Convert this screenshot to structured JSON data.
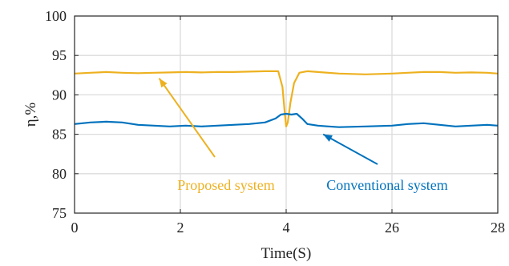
{
  "chart_data": {
    "type": "line",
    "title": "",
    "xlabel": "Time(S)",
    "ylabel": "η,%",
    "x_tick_labels": [
      "0",
      "2",
      "4",
      "26",
      "28"
    ],
    "y_ticks": [
      75,
      80,
      85,
      90,
      95,
      100
    ],
    "y_tick_labels": [
      "75",
      "80",
      "85",
      "90",
      "95",
      "100"
    ],
    "ylim": [
      75,
      100
    ],
    "grid": true,
    "legend": "none",
    "series": [
      {
        "color": "#EDB120",
        "x": [
          0,
          0.3,
          0.6,
          0.9,
          1.2,
          1.5,
          1.8,
          2.1,
          2.4,
          2.7,
          3.0,
          3.3,
          3.6,
          3.85,
          3.93,
          3.97,
          4.0,
          4.03,
          4.08,
          4.15,
          4.25,
          4.4,
          4.7,
          5.0,
          5.5,
          26.0,
          26.3,
          26.6,
          26.9,
          27.2,
          27.5,
          27.8,
          28.0
        ],
        "y": [
          92.7,
          92.8,
          92.9,
          92.8,
          92.75,
          92.8,
          92.85,
          92.9,
          92.85,
          92.9,
          92.9,
          92.95,
          93.0,
          93.0,
          91.0,
          88.0,
          86.0,
          86.5,
          89.0,
          91.5,
          92.8,
          93.0,
          92.85,
          92.7,
          92.6,
          92.7,
          92.8,
          92.9,
          92.9,
          92.8,
          92.85,
          92.8,
          92.7
        ]
      },
      {
        "color": "#0072BD",
        "x": [
          0,
          0.3,
          0.6,
          0.9,
          1.2,
          1.5,
          1.8,
          2.1,
          2.4,
          2.7,
          3.0,
          3.3,
          3.6,
          3.8,
          3.9,
          4.0,
          4.1,
          4.2,
          4.3,
          4.4,
          4.6,
          4.8,
          5.0,
          5.5,
          26.0,
          26.3,
          26.6,
          26.9,
          27.2,
          27.5,
          27.8,
          28.0
        ],
        "y": [
          86.3,
          86.5,
          86.6,
          86.5,
          86.2,
          86.1,
          86.0,
          86.1,
          86.0,
          86.1,
          86.2,
          86.3,
          86.5,
          87.0,
          87.5,
          87.6,
          87.5,
          87.6,
          87.0,
          86.3,
          86.1,
          86.0,
          85.9,
          86.0,
          86.1,
          86.3,
          86.4,
          86.2,
          86.0,
          86.1,
          86.2,
          86.1
        ]
      }
    ],
    "annotations": [
      {
        "text": "Proposed system",
        "color": "#EDB120",
        "arrow_to": {
          "x": 1.6,
          "y": 92.1
        }
      },
      {
        "text": "Conventional system",
        "color": "#0072BD",
        "arrow_to": {
          "x": 4.7,
          "y": 85.0
        }
      }
    ]
  }
}
